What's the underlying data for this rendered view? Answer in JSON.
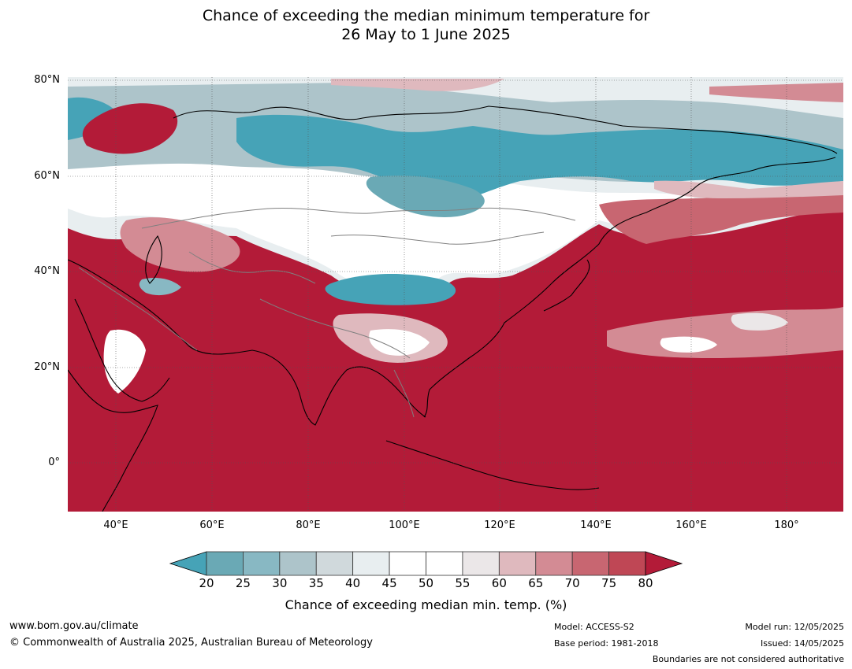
{
  "title_line1": "Chance of exceeding the median minimum temperature for",
  "title_line2": "26 May to 1 June 2025",
  "map": {
    "lat_labels": [
      "80°N",
      "60°N",
      "40°N",
      "20°N",
      "0°"
    ],
    "lon_labels": [
      "40°E",
      "60°E",
      "80°E",
      "100°E",
      "120°E",
      "140°E",
      "160°E",
      "180°"
    ],
    "colors": {
      "c20": "#46a3b7",
      "c25": "#6aa9b5",
      "c30": "#88b8c3",
      "c35": "#adc4ca",
      "c40": "#d0d9dc",
      "c45": "#e8eef0",
      "c50": "#ffffff",
      "c55": "#ffffff",
      "c60": "#ebe7e8",
      "c65": "#dfb9be",
      "c70": "#d38b94",
      "c75": "#c86671",
      "c80": "#bf4755",
      "cmax": "#b31b38"
    }
  },
  "colorbar": {
    "ticks": [
      "20",
      "25",
      "30",
      "35",
      "40",
      "45",
      "50",
      "55",
      "60",
      "65",
      "70",
      "75",
      "80"
    ],
    "label": "Chance of exceeding median min. temp. (%)",
    "colors": [
      "#6aa9b5",
      "#88b8c3",
      "#adc4ca",
      "#d0d9dc",
      "#e8eef0",
      "#ffffff",
      "#ffffff",
      "#ebe7e8",
      "#dfb9be",
      "#d38b94",
      "#c86671",
      "#bf4755"
    ],
    "low_color": "#46a3b7",
    "high_color": "#b31b38"
  },
  "footer": {
    "website": "www.bom.gov.au/climate",
    "copyright": "© Commonwealth of Australia 2025, Australian Bureau of Meteorology",
    "model": "Model: ACCESS-S2",
    "base_period": "Base period: 1981-2018",
    "model_run": "Model run: 12/05/2025",
    "issued": "Issued: 14/05/2025",
    "boundaries": "Boundaries are not considered authoritative"
  }
}
